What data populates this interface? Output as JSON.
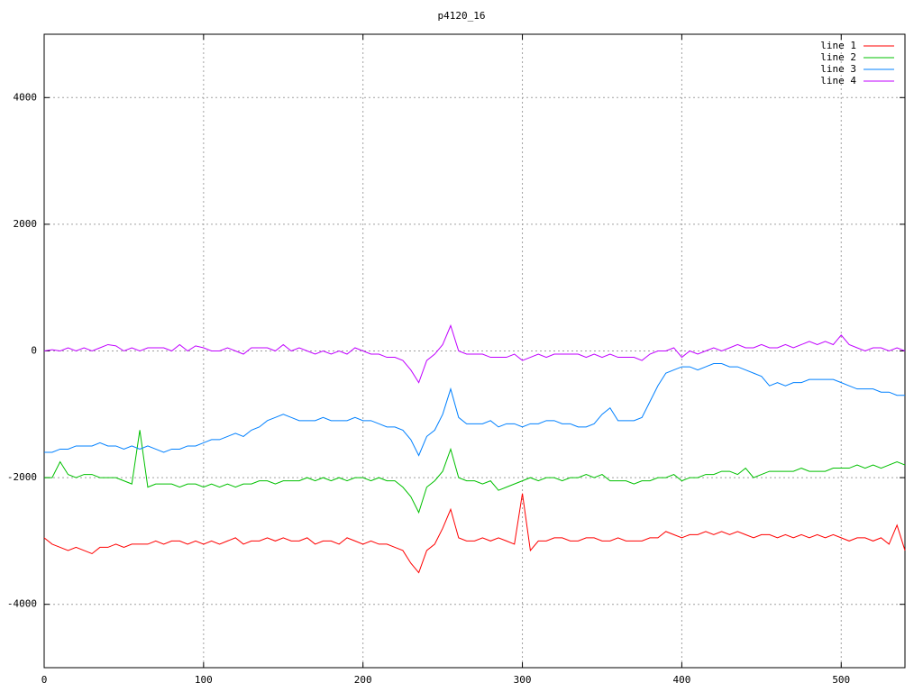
{
  "chart_data": {
    "type": "line",
    "title": "p4120_16",
    "x": [
      0,
      5,
      10,
      15,
      20,
      25,
      30,
      35,
      40,
      45,
      50,
      55,
      60,
      65,
      70,
      75,
      80,
      85,
      90,
      95,
      100,
      105,
      110,
      115,
      120,
      125,
      130,
      135,
      140,
      145,
      150,
      155,
      160,
      165,
      170,
      175,
      180,
      185,
      190,
      195,
      200,
      205,
      210,
      215,
      220,
      225,
      230,
      235,
      240,
      245,
      250,
      255,
      260,
      265,
      270,
      275,
      280,
      285,
      290,
      295,
      300,
      305,
      310,
      315,
      320,
      325,
      330,
      335,
      340,
      345,
      350,
      355,
      360,
      365,
      370,
      375,
      380,
      385,
      390,
      395,
      400,
      405,
      410,
      415,
      420,
      425,
      430,
      435,
      440,
      445,
      450,
      455,
      460,
      465,
      470,
      475,
      480,
      485,
      490,
      495,
      500,
      505,
      510,
      515,
      520,
      525,
      530,
      535,
      540
    ],
    "series": [
      {
        "name": "line 1",
        "color": "#ff0000",
        "values": [
          -2950,
          -3050,
          -3100,
          -3150,
          -3100,
          -3150,
          -3200,
          -3100,
          -3100,
          -3050,
          -3100,
          -3050,
          -3050,
          -3050,
          -3000,
          -3050,
          -3000,
          -3000,
          -3050,
          -3000,
          -3050,
          -3000,
          -3050,
          -3000,
          -2950,
          -3050,
          -3000,
          -3000,
          -2950,
          -3000,
          -2950,
          -3000,
          -3000,
          -2950,
          -3050,
          -3000,
          -3000,
          -3050,
          -2950,
          -3000,
          -3050,
          -3000,
          -3050,
          -3050,
          -3100,
          -3150,
          -3350,
          -3500,
          -3150,
          -3050,
          -2800,
          -2500,
          -2950,
          -3000,
          -3000,
          -2950,
          -3000,
          -2950,
          -3000,
          -3050,
          -2250,
          -3150,
          -3000,
          -3000,
          -2950,
          -2950,
          -3000,
          -3000,
          -2950,
          -2950,
          -3000,
          -3000,
          -2950,
          -3000,
          -3000,
          -3000,
          -2950,
          -2950,
          -2850,
          -2900,
          -2950,
          -2900,
          -2900,
          -2850,
          -2900,
          -2850,
          -2900,
          -2850,
          -2900,
          -2950,
          -2900,
          -2900,
          -2950,
          -2900,
          -2950,
          -2900,
          -2950,
          -2900,
          -2950,
          -2900,
          -2950,
          -3000,
          -2950,
          -2950,
          -3000,
          -2950,
          -3050,
          -2750,
          -3150
        ]
      },
      {
        "name": "line 2",
        "color": "#00c000",
        "values": [
          -2000,
          -2000,
          -1750,
          -1950,
          -2000,
          -1950,
          -1950,
          -2000,
          -2000,
          -2000,
          -2050,
          -2100,
          -1250,
          -2150,
          -2100,
          -2100,
          -2100,
          -2150,
          -2100,
          -2100,
          -2150,
          -2100,
          -2150,
          -2100,
          -2150,
          -2100,
          -2100,
          -2050,
          -2050,
          -2100,
          -2050,
          -2050,
          -2050,
          -2000,
          -2050,
          -2000,
          -2050,
          -2000,
          -2050,
          -2000,
          -2000,
          -2050,
          -2000,
          -2050,
          -2050,
          -2150,
          -2300,
          -2550,
          -2150,
          -2050,
          -1900,
          -1550,
          -2000,
          -2050,
          -2050,
          -2100,
          -2050,
          -2200,
          -2150,
          -2100,
          -2050,
          -2000,
          -2050,
          -2000,
          -2000,
          -2050,
          -2000,
          -2000,
          -1950,
          -2000,
          -1950,
          -2050,
          -2050,
          -2050,
          -2100,
          -2050,
          -2050,
          -2000,
          -2000,
          -1950,
          -2050,
          -2000,
          -2000,
          -1950,
          -1950,
          -1900,
          -1900,
          -1950,
          -1850,
          -2000,
          -1950,
          -1900,
          -1900,
          -1900,
          -1900,
          -1850,
          -1900,
          -1900,
          -1900,
          -1850,
          -1850,
          -1850,
          -1800,
          -1850,
          -1800,
          -1850,
          -1800,
          -1750,
          -1800
        ]
      },
      {
        "name": "line 3",
        "color": "#0080ff",
        "values": [
          -1600,
          -1600,
          -1550,
          -1550,
          -1500,
          -1500,
          -1500,
          -1450,
          -1500,
          -1500,
          -1550,
          -1500,
          -1550,
          -1500,
          -1550,
          -1600,
          -1550,
          -1550,
          -1500,
          -1500,
          -1450,
          -1400,
          -1400,
          -1350,
          -1300,
          -1350,
          -1250,
          -1200,
          -1100,
          -1050,
          -1000,
          -1050,
          -1100,
          -1100,
          -1100,
          -1050,
          -1100,
          -1100,
          -1100,
          -1050,
          -1100,
          -1100,
          -1150,
          -1200,
          -1200,
          -1250,
          -1400,
          -1650,
          -1350,
          -1250,
          -1000,
          -600,
          -1050,
          -1150,
          -1150,
          -1150,
          -1100,
          -1200,
          -1150,
          -1150,
          -1200,
          -1150,
          -1150,
          -1100,
          -1100,
          -1150,
          -1150,
          -1200,
          -1200,
          -1150,
          -1000,
          -900,
          -1100,
          -1100,
          -1100,
          -1050,
          -800,
          -550,
          -350,
          -300,
          -250,
          -250,
          -300,
          -250,
          -200,
          -200,
          -250,
          -250,
          -300,
          -350,
          -400,
          -550,
          -500,
          -550,
          -500,
          -500,
          -450,
          -450,
          -450,
          -450,
          -500,
          -550,
          -600,
          -600,
          -600,
          -650,
          -650,
          -700,
          -700
        ]
      },
      {
        "name": "line 4",
        "color": "#c000ff",
        "values": [
          0,
          20,
          0,
          50,
          0,
          50,
          0,
          50,
          100,
          80,
          0,
          50,
          0,
          50,
          50,
          50,
          0,
          100,
          0,
          80,
          50,
          0,
          0,
          50,
          0,
          -50,
          50,
          50,
          50,
          0,
          100,
          0,
          50,
          0,
          -50,
          0,
          -50,
          0,
          -50,
          50,
          0,
          -50,
          -50,
          -100,
          -100,
          -150,
          -300,
          -500,
          -150,
          -50,
          100,
          400,
          0,
          -50,
          -50,
          -50,
          -100,
          -100,
          -100,
          -50,
          -150,
          -100,
          -50,
          -100,
          -50,
          -50,
          -50,
          -50,
          -100,
          -50,
          -100,
          -50,
          -100,
          -100,
          -100,
          -150,
          -50,
          0,
          0,
          50,
          -100,
          0,
          -50,
          0,
          50,
          0,
          50,
          100,
          50,
          50,
          100,
          50,
          50,
          100,
          50,
          100,
          150,
          100,
          150,
          100,
          250,
          100,
          50,
          0,
          50,
          50,
          0,
          50,
          0
        ]
      }
    ],
    "xlim": [
      0,
      540
    ],
    "ylim": [
      -5000,
      5000
    ],
    "xticks": [
      0,
      100,
      200,
      300,
      400,
      500
    ],
    "yticks": [
      -4000,
      -2000,
      0,
      2000,
      4000
    ],
    "grid": true,
    "legend": "top-right"
  }
}
